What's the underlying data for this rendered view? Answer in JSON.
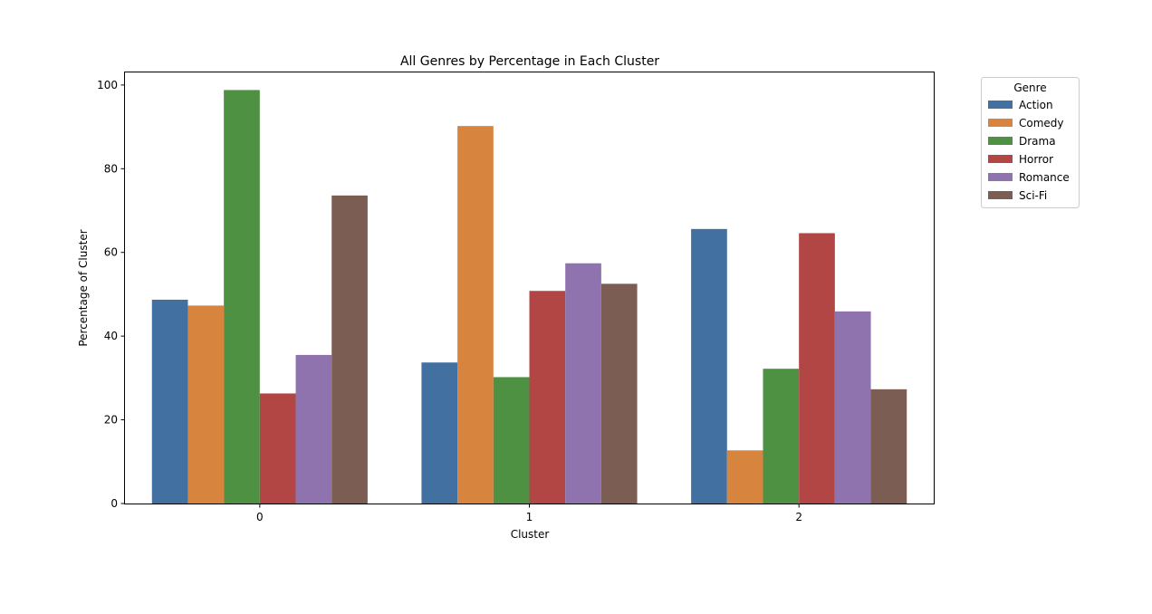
{
  "chart_data": {
    "type": "bar",
    "title": "All Genres by Percentage in Each Cluster",
    "xlabel": "Cluster",
    "ylabel": "Percentage of Cluster",
    "categories": [
      "0",
      "1",
      "2"
    ],
    "ylim": [
      0,
      103
    ],
    "yticks": [
      0,
      20,
      40,
      60,
      80,
      100
    ],
    "grid": false,
    "legend": {
      "title": "Genre",
      "placement": "outside-top-right"
    },
    "series": [
      {
        "name": "Action",
        "color": "#4170a1",
        "values": [
          48.7,
          33.7,
          65.6
        ]
      },
      {
        "name": "Comedy",
        "color": "#d6843e",
        "values": [
          47.3,
          90.2,
          12.7
        ]
      },
      {
        "name": "Drama",
        "color": "#4f9143",
        "values": [
          98.8,
          30.2,
          32.2
        ]
      },
      {
        "name": "Horror",
        "color": "#b24645",
        "values": [
          26.3,
          50.8,
          64.6
        ]
      },
      {
        "name": "Romance",
        "color": "#8e73af",
        "values": [
          35.5,
          57.4,
          45.9
        ]
      },
      {
        "name": "Sci-Fi",
        "color": "#7c5d53",
        "values": [
          73.6,
          52.5,
          27.3
        ]
      }
    ]
  }
}
